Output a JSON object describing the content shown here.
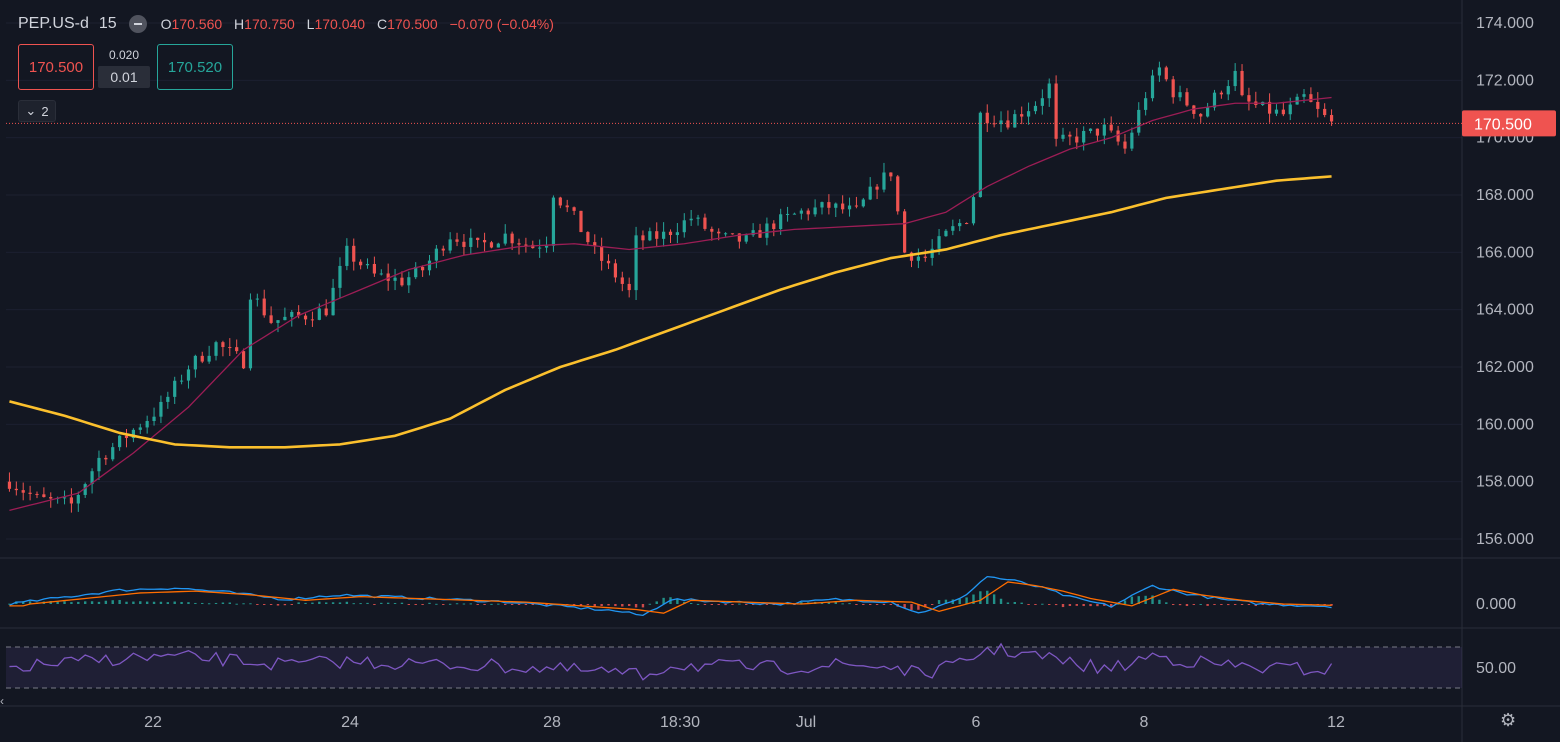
{
  "header": {
    "symbol": "PEP.US-d",
    "timeframe": "15",
    "open_label": "O",
    "open": "170.560",
    "high_label": "H",
    "high": "170.750",
    "low_label": "L",
    "low": "170.040",
    "close_label": "C",
    "close": "170.500",
    "change": "−0.070 (−0.04%)"
  },
  "trade": {
    "sell_price": "170.500",
    "spread": "0.020",
    "lot": "0.01",
    "buy_price": "170.520"
  },
  "indicators_toggle": "2",
  "colors": {
    "background": "#131722",
    "up": "#26a69a",
    "down": "#ef5350",
    "ma_fast": "#9c1d55",
    "ma_slow": "#fbc02d",
    "macd": "#2196f3",
    "signal": "#ff6d00",
    "rsi": "#7e57c2"
  },
  "chart_data": [
    {
      "type": "candlestick",
      "ylim": [
        155.0,
        174.5
      ],
      "y_ticks": [
        "174.000",
        "172.000",
        "170.000",
        "168.000",
        "166.000",
        "164.000",
        "162.000",
        "160.000",
        "158.000",
        "156.000"
      ],
      "y_tick_values": [
        174,
        172,
        170,
        168,
        166,
        164,
        162,
        160,
        158,
        156
      ],
      "x_tick_labels": [
        "22",
        "24",
        "28",
        "18:30",
        "Jul",
        "6",
        "8",
        "12"
      ],
      "last_price": 170.5,
      "last_price_label": "170.500",
      "price_path": [
        [
          0,
          158.0
        ],
        [
          4,
          157.4
        ],
        [
          9,
          157.2
        ],
        [
          13,
          158.8
        ],
        [
          17,
          159.6
        ],
        [
          22,
          160.6
        ],
        [
          26,
          162.0
        ],
        [
          30,
          162.8
        ],
        [
          34,
          162.2
        ],
        [
          35,
          164.6
        ],
        [
          38,
          163.6
        ],
        [
          43,
          163.8
        ],
        [
          46,
          164.0
        ],
        [
          49,
          166.0
        ],
        [
          53,
          165.2
        ],
        [
          57,
          165.0
        ],
        [
          60,
          165.4
        ],
        [
          64,
          166.6
        ],
        [
          68,
          166.2
        ],
        [
          72,
          166.6
        ],
        [
          76,
          166.2
        ],
        [
          78,
          166.4
        ],
        [
          79,
          168.1
        ],
        [
          82,
          167.2
        ],
        [
          85,
          166.0
        ],
        [
          88,
          165.2
        ],
        [
          90,
          164.6
        ],
        [
          91,
          166.4
        ],
        [
          95,
          166.6
        ],
        [
          99,
          167.2
        ],
        [
          103,
          166.5
        ],
        [
          107,
          166.4
        ],
        [
          111,
          167.0
        ],
        [
          115,
          167.4
        ],
        [
          119,
          167.6
        ],
        [
          123,
          167.4
        ],
        [
          126,
          168.4
        ],
        [
          128,
          168.8
        ],
        [
          129,
          167.4
        ],
        [
          130,
          166.0
        ],
        [
          133,
          165.8
        ],
        [
          136,
          166.6
        ],
        [
          139,
          167.2
        ],
        [
          140,
          168.0
        ],
        [
          141,
          170.8
        ],
        [
          145,
          170.6
        ],
        [
          149,
          171.2
        ],
        [
          151,
          171.8
        ],
        [
          152,
          169.8
        ],
        [
          155,
          170.0
        ],
        [
          159,
          170.3
        ],
        [
          162,
          169.6
        ],
        [
          165,
          171.5
        ],
        [
          167,
          172.4
        ],
        [
          169,
          171.6
        ],
        [
          173,
          170.8
        ],
        [
          176,
          171.7
        ],
        [
          178,
          172.2
        ],
        [
          179,
          171.3
        ],
        [
          182,
          171.0
        ],
        [
          185,
          170.8
        ],
        [
          188,
          171.4
        ],
        [
          190,
          170.9
        ],
        [
          192,
          170.5
        ]
      ],
      "ma_fast": [
        [
          0,
          157.0
        ],
        [
          10,
          157.6
        ],
        [
          18,
          159.0
        ],
        [
          26,
          160.6
        ],
        [
          34,
          162.6
        ],
        [
          42,
          163.8
        ],
        [
          50,
          164.6
        ],
        [
          58,
          165.4
        ],
        [
          66,
          165.9
        ],
        [
          74,
          166.2
        ],
        [
          82,
          166.3
        ],
        [
          90,
          166.1
        ],
        [
          98,
          166.3
        ],
        [
          106,
          166.6
        ],
        [
          114,
          166.8
        ],
        [
          122,
          166.9
        ],
        [
          130,
          167.0
        ],
        [
          136,
          167.4
        ],
        [
          142,
          168.3
        ],
        [
          148,
          169.0
        ],
        [
          154,
          169.6
        ],
        [
          160,
          170.0
        ],
        [
          166,
          170.6
        ],
        [
          172,
          171.0
        ],
        [
          178,
          171.2
        ],
        [
          184,
          171.2
        ],
        [
          192,
          171.4
        ]
      ],
      "ma_slow": [
        [
          0,
          160.8
        ],
        [
          8,
          160.3
        ],
        [
          16,
          159.7
        ],
        [
          24,
          159.3
        ],
        [
          32,
          159.2
        ],
        [
          40,
          159.2
        ],
        [
          48,
          159.3
        ],
        [
          56,
          159.6
        ],
        [
          64,
          160.2
        ],
        [
          72,
          161.2
        ],
        [
          80,
          162.0
        ],
        [
          88,
          162.6
        ],
        [
          96,
          163.3
        ],
        [
          104,
          164.0
        ],
        [
          112,
          164.7
        ],
        [
          120,
          165.3
        ],
        [
          128,
          165.8
        ],
        [
          136,
          166.1
        ],
        [
          144,
          166.6
        ],
        [
          152,
          167.0
        ],
        [
          160,
          167.4
        ],
        [
          168,
          167.9
        ],
        [
          176,
          168.2
        ],
        [
          184,
          168.5
        ],
        [
          192,
          168.65
        ]
      ]
    },
    {
      "type": "macd",
      "y_ticks": [
        "0.000"
      ],
      "y_tick_values": [
        0
      ]
    },
    {
      "type": "rsi",
      "y_ticks": [
        "50.00"
      ],
      "y_tick_values": [
        50
      ]
    }
  ]
}
